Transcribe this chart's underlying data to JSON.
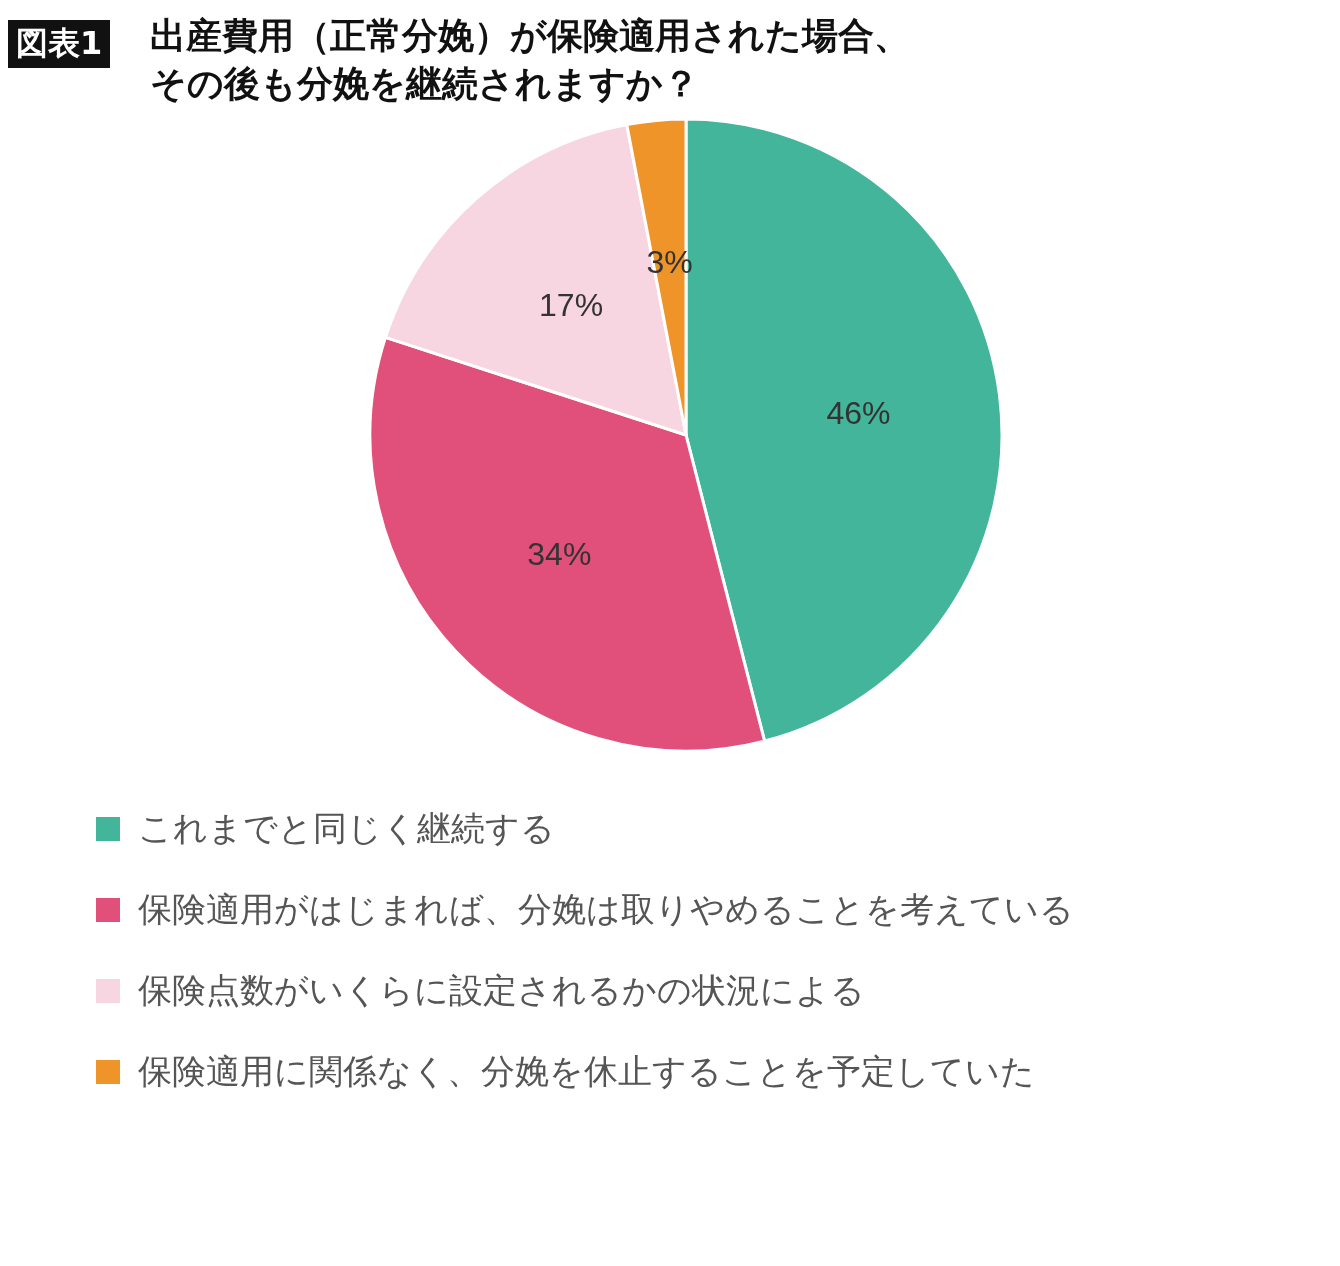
{
  "chart_data": {
    "type": "pie",
    "title": "出産費用（正常分娩）が保険適用された場合、その後も分娩を継続されますか？",
    "annotations": [
      "図表1"
    ],
    "categories": [
      "これまでと同じく継続する",
      "保険適用がはじまれば、分娩は取りやめることを考えている",
      "保険点数がいくらに設定されるかの状況による",
      "保険適用に関係なく、分娩を休止することを予定していた"
    ],
    "values": [
      46,
      34,
      17,
      3
    ],
    "value_labels": [
      "46%",
      "34%",
      "17%",
      "3%"
    ],
    "colors": [
      "#43b59b",
      "#e0507a",
      "#f7d6e1",
      "#ee9428"
    ],
    "legend": "bottom"
  }
}
